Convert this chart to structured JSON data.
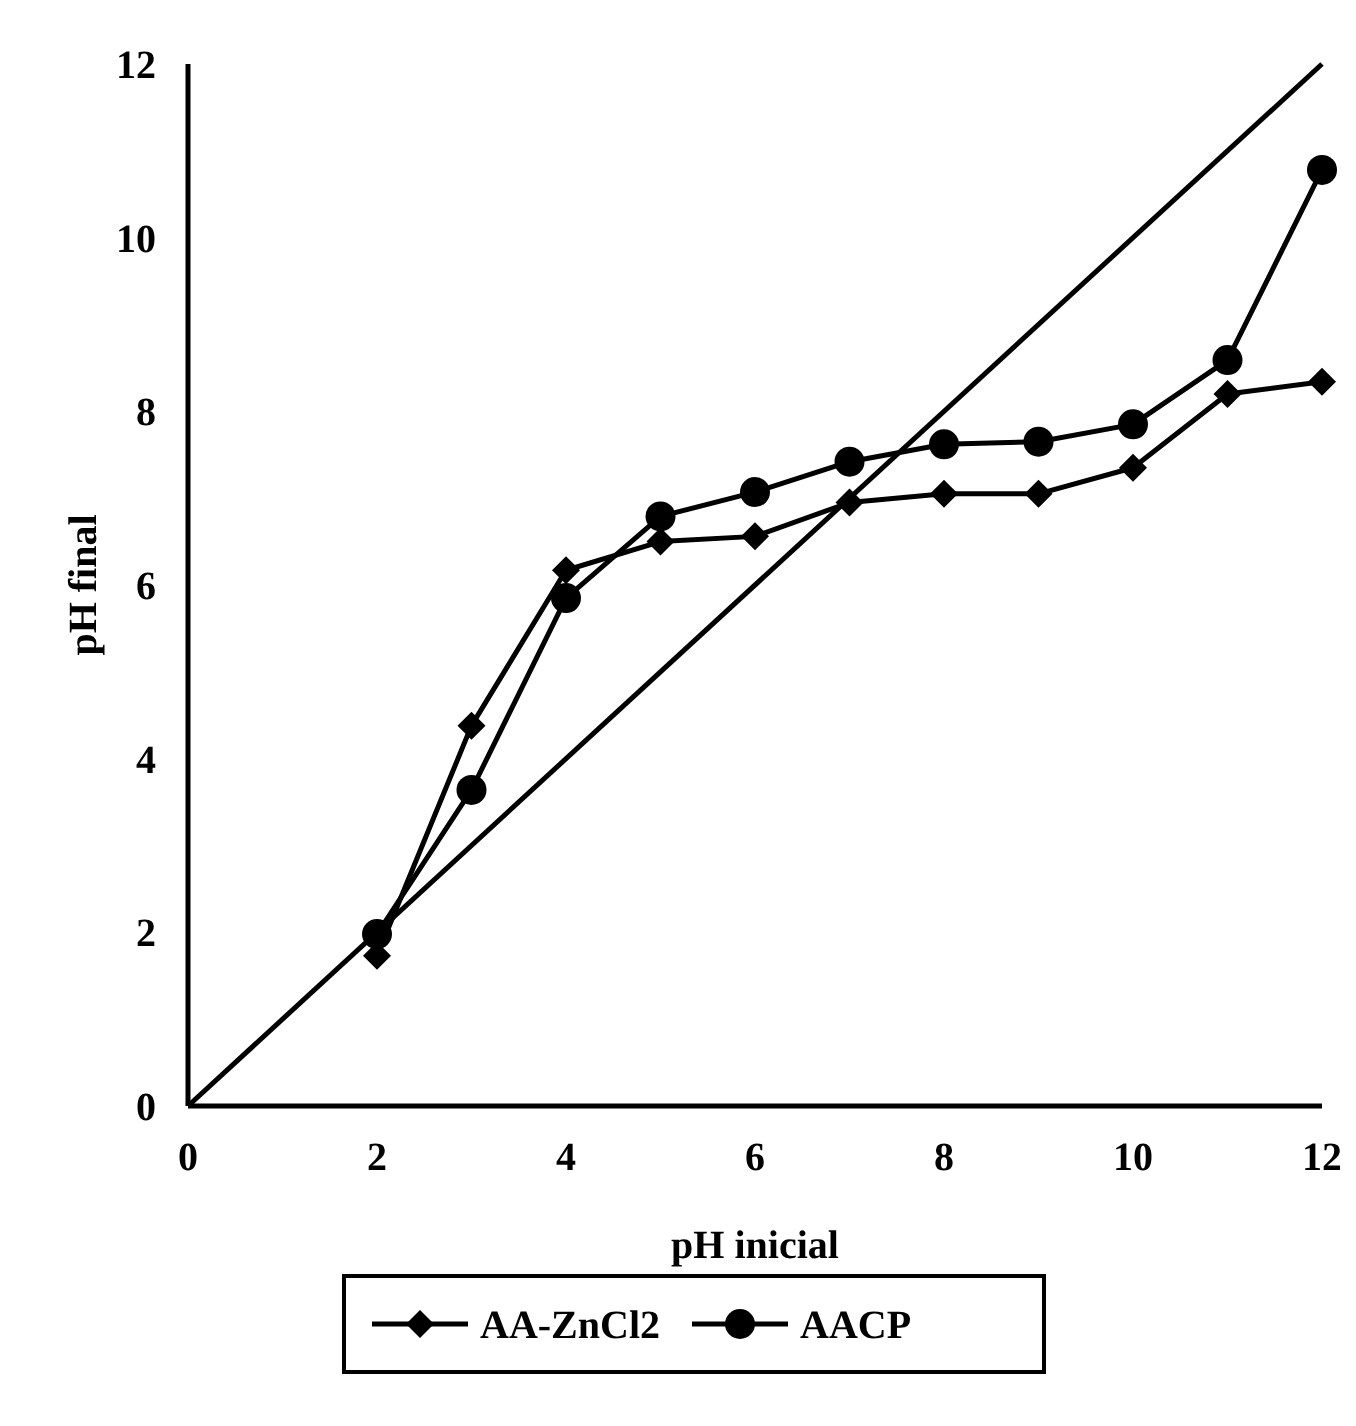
{
  "chart_data": {
    "type": "line",
    "xlabel": "pH inicial",
    "ylabel": "pH final",
    "xlim": [
      0,
      12
    ],
    "xticks": [
      0,
      2,
      4,
      6,
      8,
      10,
      12
    ],
    "ylim": [
      0,
      12
    ],
    "yticks": [
      0,
      2,
      4,
      6,
      8,
      10,
      12
    ],
    "grid": false,
    "legend": "bottom",
    "series": [
      {
        "name": "AA-ZnCl2",
        "color": "#000000",
        "marker": "diamond",
        "x": [
          2,
          3,
          4,
          5,
          6,
          7,
          8,
          9,
          10,
          11,
          12
        ],
        "values": [
          1.73,
          4.38,
          6.17,
          6.5,
          6.56,
          6.95,
          7.05,
          7.05,
          7.35,
          8.2,
          8.34
        ]
      },
      {
        "name": "AACP",
        "color": "#000000",
        "marker": "circle",
        "x": [
          2,
          3,
          4,
          5,
          6,
          7,
          8,
          9,
          10,
          11,
          12
        ],
        "values": [
          1.98,
          3.64,
          5.85,
          6.79,
          7.07,
          7.42,
          7.62,
          7.65,
          7.85,
          8.59,
          10.78
        ]
      },
      {
        "color": "#000000",
        "marker": "none",
        "x": [
          0,
          12
        ],
        "values": [
          0,
          12
        ]
      }
    ]
  }
}
